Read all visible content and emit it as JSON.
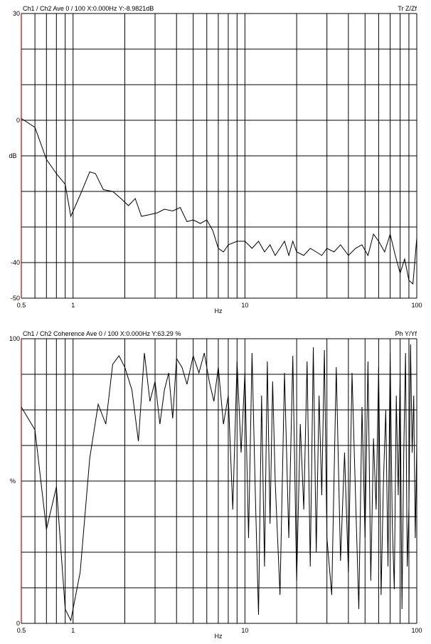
{
  "chart_data": [
    {
      "type": "line",
      "header_left": "Ch1 / Ch2  Ave 0 / 100  X:0.000Hz  Y:-8.9821dB",
      "header_right": "Tr Z/Zf",
      "xlabel": "Hz",
      "ylabel": "dB",
      "xscale": "log",
      "xlim": [
        0.5,
        100
      ],
      "ylim": [
        -50,
        30
      ],
      "x_tick_labels": [
        {
          "x": 0.5,
          "label": "0.5"
        },
        {
          "x": 1,
          "label": "1"
        },
        {
          "x": 10,
          "label": "10"
        },
        {
          "x": 100,
          "label": "100"
        }
      ],
      "y_tick_labels": [
        {
          "y": 30,
          "label": "30"
        },
        {
          "y": 0,
          "label": "0"
        },
        {
          "y": -40,
          "label": "-40"
        },
        {
          "y": -50,
          "label": "-50"
        }
      ],
      "grid": true,
      "series": [
        {
          "x": [
            0.5,
            0.6,
            0.7,
            0.8,
            0.9,
            0.97,
            1.1,
            1.25,
            1.35,
            1.5,
            1.7,
            1.9,
            2.1,
            2.3,
            2.5,
            2.8,
            3.1,
            3.4,
            3.8,
            4.2,
            4.6,
            5.0,
            5.5,
            6.0,
            6.5,
            7.0,
            7.5,
            8.0,
            9,
            10,
            11,
            12,
            13,
            14,
            15,
            16,
            17,
            18,
            19,
            20,
            22,
            24,
            26,
            28,
            30,
            33,
            36,
            40,
            44,
            48,
            52,
            56,
            60,
            65,
            70,
            75,
            80,
            85,
            90,
            95,
            100
          ],
          "y": [
            0.5,
            -2,
            -11,
            -15,
            -18,
            -27,
            -21,
            -14.5,
            -15,
            -19.5,
            -20,
            -22,
            -24,
            -22,
            -27,
            -26.5,
            -26,
            -25,
            -25.5,
            -24.5,
            -28.5,
            -28,
            -29,
            -28,
            -31,
            -36,
            -37,
            -35,
            -34,
            -34,
            -36,
            -34,
            -37,
            -35,
            -38,
            -36,
            -34,
            -38,
            -34,
            -37,
            -38,
            -36,
            -37,
            -38,
            -36,
            -37,
            -35,
            -38,
            -36,
            -35,
            -38,
            -32,
            -34,
            -37,
            -32,
            -38,
            -43,
            -39,
            -45,
            -46,
            -33
          ]
        }
      ]
    },
    {
      "type": "line",
      "header_left": "Ch1 / Ch2  Coherence Ave 0 / 100  X:0.000Hz  Y:63.29 %",
      "header_right": "Ph Y/Yf",
      "xlabel": "Hz",
      "ylabel": "%",
      "xscale": "log",
      "xlim": [
        0.5,
        100
      ],
      "ylim": [
        0,
        100
      ],
      "x_tick_labels": [
        {
          "x": 0.5,
          "label": "0.5"
        },
        {
          "x": 1,
          "label": "1"
        },
        {
          "x": 10,
          "label": "10"
        },
        {
          "x": 100,
          "label": "100"
        }
      ],
      "y_tick_labels": [
        {
          "y": 100,
          "label": "100"
        },
        {
          "y": 0,
          "label": "0"
        }
      ],
      "grid": true,
      "series": [
        {
          "x": [
            0.5,
            0.6,
            0.7,
            0.8,
            0.9,
            0.97,
            1.1,
            1.25,
            1.4,
            1.55,
            1.7,
            1.85,
            2.0,
            2.2,
            2.4,
            2.6,
            2.8,
            3.0,
            3.2,
            3.4,
            3.6,
            3.8,
            4.0,
            4.3,
            4.6,
            5.0,
            5.4,
            5.8,
            6.2,
            6.6,
            7.0,
            7.5,
            8.0,
            8.5,
            9.0,
            9.5,
            10,
            10.5,
            11,
            11.5,
            12,
            12.5,
            13,
            13.5,
            14,
            14.5,
            15,
            16,
            17,
            18,
            19,
            20,
            21,
            22,
            23,
            24,
            25,
            26,
            27,
            28,
            29,
            30,
            32,
            34,
            36,
            38,
            40,
            42,
            44,
            46,
            48,
            50,
            52,
            54,
            56,
            58,
            60,
            62,
            64,
            66,
            68,
            70,
            72,
            74,
            76,
            78,
            80,
            82,
            84,
            86,
            88,
            90,
            92,
            94,
            96,
            98,
            100
          ],
          "y": [
            76,
            68,
            33,
            48,
            5,
            1,
            18,
            58,
            77,
            70,
            91,
            94,
            90,
            82,
            64,
            95,
            78,
            85,
            70,
            82,
            88,
            72,
            93,
            90,
            84,
            94,
            88,
            95,
            85,
            78,
            90,
            70,
            80,
            40,
            92,
            60,
            88,
            30,
            95,
            45,
            3,
            80,
            20,
            92,
            35,
            85,
            50,
            10,
            88,
            30,
            94,
            15,
            70,
            40,
            92,
            20,
            97,
            25,
            80,
            45,
            96,
            30,
            10,
            90,
            22,
            60,
            18,
            88,
            45,
            5,
            76,
            30,
            92,
            15,
            65,
            40,
            90,
            10,
            50,
            75,
            20,
            95,
            35,
            12,
            80,
            45,
            88,
            5,
            60,
            95,
            20,
            40,
            98,
            60,
            80,
            30,
            63
          ]
        }
      ]
    }
  ]
}
